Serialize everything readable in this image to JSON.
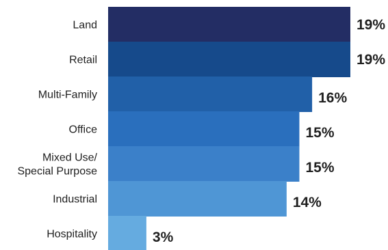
{
  "chart_data": {
    "type": "bar",
    "orientation": "horizontal",
    "title": "",
    "xlabel": "",
    "ylabel": "",
    "categories": [
      [
        "Land"
      ],
      [
        "Retail"
      ],
      [
        "Multi-Family"
      ],
      [
        "Office"
      ],
      [
        "Mixed Use/",
        "Special Purpose"
      ],
      [
        "Industrial"
      ],
      [
        "Hospitality"
      ]
    ],
    "values": [
      19,
      19,
      16,
      15,
      15,
      14,
      3
    ],
    "value_labels": [
      "19%",
      "19%",
      "16%",
      "15%",
      "15%",
      "14%",
      "3%"
    ],
    "unit": "%",
    "xlim": [
      0,
      19
    ],
    "grid": false,
    "legend": "none",
    "colors": [
      "#232d64",
      "#164a8b",
      "#2160a8",
      "#2a6fbd",
      "#3b80c9",
      "#4f96d5",
      "#65abe0"
    ]
  }
}
